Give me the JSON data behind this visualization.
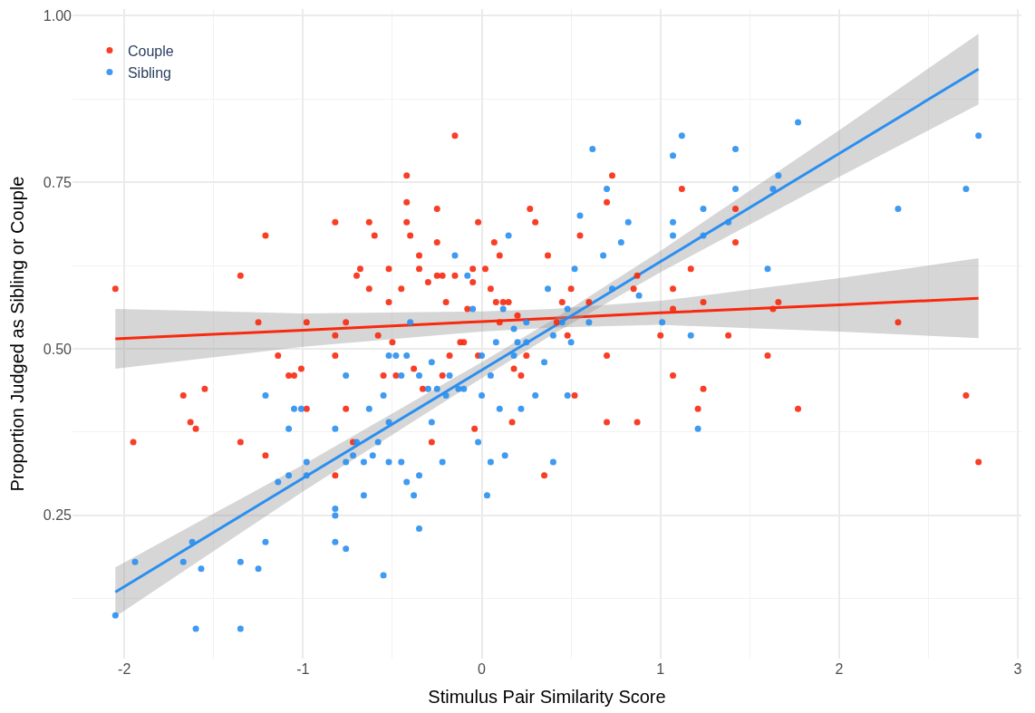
{
  "chart_data": {
    "type": "scatter",
    "xlabel": "Stimulus Pair Similarity Score",
    "ylabel": "Proportion Judged as Sibling or Couple",
    "xlim": [
      -2.29,
      3.02
    ],
    "ylim": [
      0.035,
      1.01
    ],
    "xticks": [
      -2,
      -1,
      0,
      1,
      2,
      3
    ],
    "yticks": [
      {
        "value": 0.25,
        "label": "0.25"
      },
      {
        "value": 0.5,
        "label": "0.50"
      },
      {
        "value": 0.75,
        "label": "0.75"
      },
      {
        "value": 1.0,
        "label": "1.00"
      }
    ],
    "grid": true,
    "legend": "top left",
    "series": [
      {
        "name": "Couple",
        "color": "#f8290e",
        "marker": "circle",
        "x": [
          -2.05,
          -1.95,
          -1.67,
          -1.63,
          -1.6,
          -1.55,
          -1.35,
          -1.35,
          -1.25,
          -1.21,
          -1.21,
          -1.14,
          -1.08,
          -1.05,
          -1.01,
          -0.98,
          -0.98,
          -0.82,
          -0.82,
          -0.82,
          -0.82,
          -0.76,
          -0.76,
          -0.72,
          -0.7,
          -0.68,
          -0.63,
          -0.63,
          -0.6,
          -0.58,
          -0.55,
          -0.52,
          -0.52,
          -0.5,
          -0.48,
          -0.45,
          -0.42,
          -0.42,
          -0.42,
          -0.4,
          -0.38,
          -0.35,
          -0.35,
          -0.33,
          -0.3,
          -0.28,
          -0.25,
          -0.25,
          -0.25,
          -0.22,
          -0.22,
          -0.2,
          -0.18,
          -0.15,
          -0.15,
          -0.12,
          -0.1,
          -0.08,
          -0.05,
          -0.05,
          -0.02,
          -0.02,
          -0.04,
          0.02,
          0.05,
          0.07,
          0.08,
          0.1,
          0.1,
          0.12,
          0.15,
          0.17,
          0.18,
          0.2,
          0.22,
          0.25,
          0.27,
          0.3,
          0.35,
          0.37,
          0.42,
          0.45,
          0.48,
          0.5,
          0.52,
          0.55,
          0.6,
          0.7,
          0.7,
          0.7,
          0.73,
          0.85,
          0.87,
          0.87,
          1.0,
          1.07,
          1.07,
          1.07,
          1.12,
          1.17,
          1.21,
          1.24,
          1.24,
          1.38,
          1.42,
          1.42,
          1.6,
          1.63,
          1.66,
          1.77,
          2.33,
          2.71,
          2.78
        ],
        "values": [
          0.59,
          0.36,
          0.43,
          0.39,
          0.38,
          0.44,
          0.61,
          0.36,
          0.54,
          0.67,
          0.34,
          0.49,
          0.46,
          0.46,
          0.47,
          0.41,
          0.54,
          0.69,
          0.52,
          0.49,
          0.31,
          0.54,
          0.41,
          0.36,
          0.61,
          0.62,
          0.69,
          0.59,
          0.67,
          0.52,
          0.46,
          0.57,
          0.62,
          0.51,
          0.46,
          0.59,
          0.76,
          0.72,
          0.69,
          0.67,
          0.47,
          0.62,
          0.64,
          0.44,
          0.6,
          0.36,
          0.71,
          0.66,
          0.61,
          0.61,
          0.46,
          0.57,
          0.49,
          0.82,
          0.61,
          0.51,
          0.51,
          0.56,
          0.62,
          0.6,
          0.69,
          0.49,
          0.38,
          0.62,
          0.59,
          0.66,
          0.57,
          0.64,
          0.54,
          0.57,
          0.57,
          0.39,
          0.47,
          0.55,
          0.46,
          0.49,
          0.71,
          0.69,
          0.31,
          0.64,
          0.54,
          0.57,
          0.52,
          0.59,
          0.43,
          0.67,
          0.57,
          0.72,
          0.49,
          0.39,
          0.76,
          0.59,
          0.39,
          0.61,
          0.52,
          0.59,
          0.46,
          0.56,
          0.74,
          0.62,
          0.41,
          0.57,
          0.44,
          0.52,
          0.66,
          0.71,
          0.49,
          0.56,
          0.57,
          0.41,
          0.54,
          0.43,
          0.33
        ]
      },
      {
        "name": "Sibling",
        "color": "#2a8ff0",
        "marker": "circle",
        "x": [
          -2.05,
          -1.94,
          -1.67,
          -1.62,
          -1.6,
          -1.57,
          -1.35,
          -1.35,
          -1.25,
          -1.21,
          -1.21,
          -1.14,
          -1.08,
          -1.08,
          -1.05,
          -1.01,
          -0.98,
          -0.98,
          -0.82,
          -0.82,
          -0.82,
          -0.82,
          -0.76,
          -0.76,
          -0.76,
          -0.72,
          -0.7,
          -0.66,
          -0.66,
          -0.63,
          -0.61,
          -0.58,
          -0.55,
          -0.55,
          -0.52,
          -0.52,
          -0.52,
          -0.48,
          -0.45,
          -0.45,
          -0.42,
          -0.42,
          -0.4,
          -0.38,
          -0.35,
          -0.35,
          -0.35,
          -0.3,
          -0.28,
          -0.28,
          -0.25,
          -0.22,
          -0.2,
          -0.18,
          -0.15,
          -0.13,
          -0.1,
          -0.08,
          -0.05,
          -0.02,
          0.0,
          0.0,
          0.03,
          0.05,
          0.05,
          0.08,
          0.1,
          0.12,
          0.13,
          0.15,
          0.18,
          0.18,
          0.2,
          0.22,
          0.25,
          0.25,
          0.3,
          0.35,
          0.37,
          0.4,
          0.4,
          0.45,
          0.48,
          0.48,
          0.5,
          0.52,
          0.55,
          0.6,
          0.62,
          0.68,
          0.7,
          0.73,
          0.78,
          0.82,
          0.88,
          1.01,
          1.07,
          1.07,
          1.07,
          1.12,
          1.17,
          1.21,
          1.24,
          1.24,
          1.38,
          1.42,
          1.42,
          1.6,
          1.63,
          1.66,
          1.77,
          2.33,
          2.71,
          2.78
        ],
        "values": [
          0.1,
          0.18,
          0.18,
          0.21,
          0.08,
          0.17,
          0.18,
          0.08,
          0.17,
          0.43,
          0.21,
          0.3,
          0.38,
          0.31,
          0.41,
          0.41,
          0.33,
          0.31,
          0.38,
          0.26,
          0.25,
          0.21,
          0.46,
          0.33,
          0.2,
          0.34,
          0.36,
          0.28,
          0.33,
          0.41,
          0.34,
          0.36,
          0.43,
          0.16,
          0.49,
          0.39,
          0.33,
          0.49,
          0.46,
          0.33,
          0.49,
          0.3,
          0.54,
          0.28,
          0.46,
          0.31,
          0.23,
          0.44,
          0.48,
          0.39,
          0.44,
          0.33,
          0.43,
          0.46,
          0.64,
          0.44,
          0.44,
          0.61,
          0.56,
          0.36,
          0.49,
          0.43,
          0.28,
          0.46,
          0.33,
          0.51,
          0.41,
          0.56,
          0.34,
          0.67,
          0.53,
          0.49,
          0.51,
          0.41,
          0.54,
          0.51,
          0.43,
          0.48,
          0.59,
          0.52,
          0.33,
          0.54,
          0.43,
          0.56,
          0.51,
          0.62,
          0.7,
          0.54,
          0.8,
          0.64,
          0.74,
          0.59,
          0.66,
          0.69,
          0.58,
          0.54,
          0.79,
          0.69,
          0.67,
          0.82,
          0.52,
          0.38,
          0.71,
          0.67,
          0.69,
          0.8,
          0.74,
          0.62,
          0.74,
          0.76,
          0.84,
          0.71,
          0.74,
          0.82
        ]
      },
      {
        "color": "#f8290e",
        "type": "line",
        "x": [
          -2.05,
          -1,
          0,
          0.4,
          1,
          2,
          2.78
        ],
        "values": [
          0.515,
          0.528,
          0.541,
          0.546,
          0.554,
          0.566,
          0.576
        ],
        "lower": [
          0.47,
          0.503,
          0.526,
          0.532,
          0.536,
          0.526,
          0.516
        ],
        "upper": [
          0.56,
          0.553,
          0.556,
          0.56,
          0.572,
          0.606,
          0.636
        ]
      },
      {
        "color": "#2a8ff0",
        "type": "line",
        "x": [
          -2.05,
          -1,
          0,
          0.4,
          1,
          2,
          2.78
        ],
        "values": [
          0.135,
          0.306,
          0.468,
          0.533,
          0.631,
          0.793,
          0.92
        ],
        "lower": [
          0.098,
          0.286,
          0.456,
          0.522,
          0.615,
          0.758,
          0.867
        ],
        "upper": [
          0.172,
          0.326,
          0.48,
          0.544,
          0.647,
          0.828,
          0.973
        ]
      }
    ]
  }
}
